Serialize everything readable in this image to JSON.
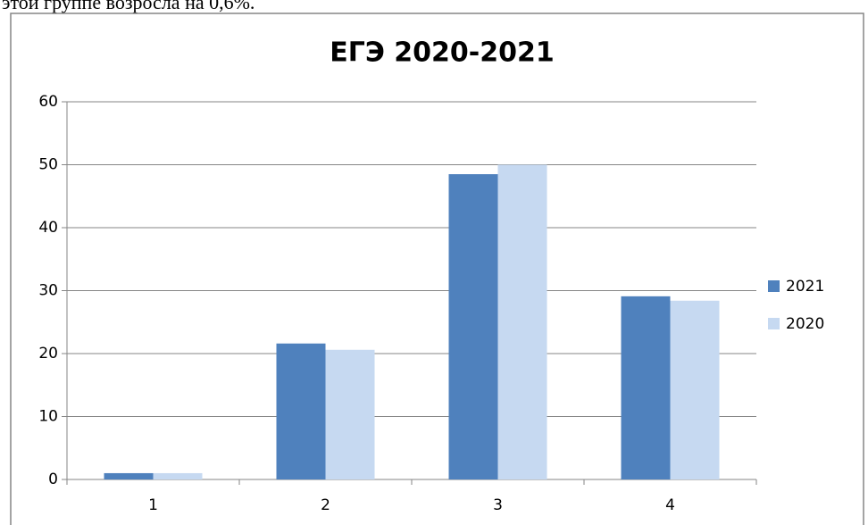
{
  "text_above": "этой группе возросла на 0,6%.",
  "chart_data": {
    "type": "bar",
    "title": "ЕГЭ 2020-2021",
    "categories": [
      "1",
      "2",
      "3",
      "4"
    ],
    "series": [
      {
        "name": "2021",
        "color": "#4f81bd",
        "values": [
          1,
          21.6,
          48.5,
          29.1
        ]
      },
      {
        "name": "2020",
        "color": "#c6d9f1",
        "values": [
          1,
          20.6,
          50,
          28.4
        ]
      }
    ],
    "ylim": [
      0,
      60
    ],
    "yticks": [
      0,
      10,
      20,
      30,
      40,
      50,
      60
    ],
    "grid": true,
    "legend": "right"
  }
}
